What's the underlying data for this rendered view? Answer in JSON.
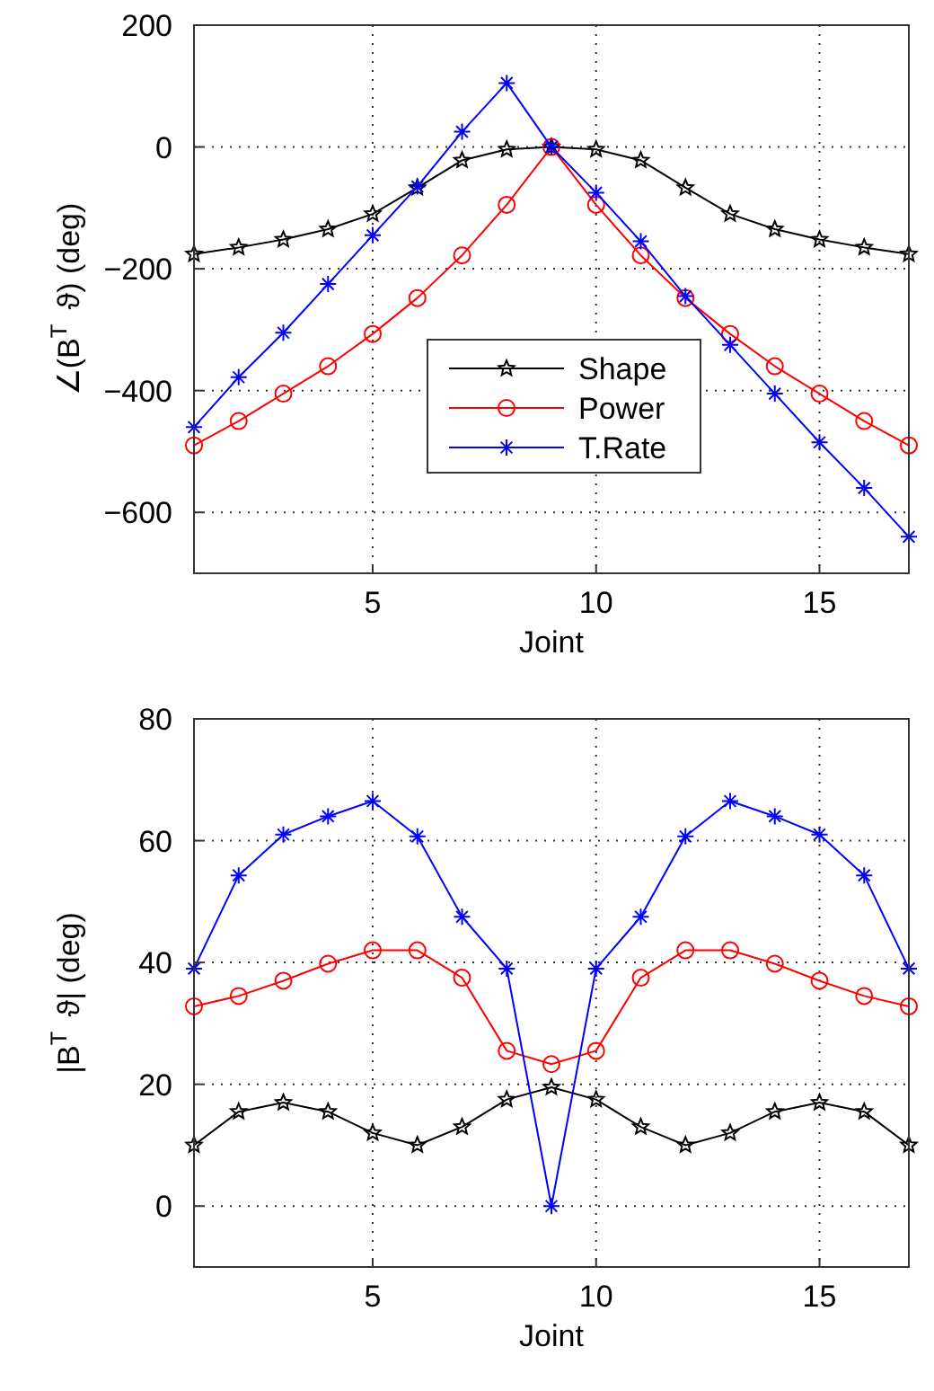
{
  "chart_data": [
    {
      "type": "line",
      "ylabel": "∠(B$^{T}$ ϑ) (deg)",
      "xlabel": "Joint",
      "x": [
        1,
        2,
        3,
        4,
        5,
        6,
        7,
        8,
        9,
        10,
        11,
        12,
        13,
        14,
        15,
        16,
        17
      ],
      "xlim": [
        1,
        17
      ],
      "xticks": [
        5,
        10,
        15
      ],
      "ylim": [
        -700,
        200
      ],
      "yticks": [
        -600,
        -400,
        -200,
        0,
        200
      ],
      "grid": true,
      "legend": "bottom right",
      "series": [
        {
          "name": "Shape",
          "color": "#000000",
          "marker": "star",
          "values": [
            -176,
            -165,
            -152,
            -135,
            -110,
            -67,
            -22,
            -4,
            0,
            -4,
            -22,
            -67,
            -110,
            -135,
            -152,
            -165,
            -176
          ]
        },
        {
          "name": "Power",
          "color": "#ff0000",
          "marker": "circle",
          "values": [
            -490,
            -450,
            -405,
            -360,
            -307,
            -248,
            -178,
            -95,
            0,
            -95,
            -178,
            -248,
            -307,
            -360,
            -405,
            -450,
            -490
          ]
        },
        {
          "name": "T.Rate",
          "color": "#0000ff",
          "marker": "cross",
          "values": [
            -460,
            -378,
            -305,
            -225,
            -145,
            -65,
            25,
            105,
            0,
            -75,
            -155,
            -245,
            -325,
            -405,
            -485,
            -560,
            -640
          ]
        }
      ]
    },
    {
      "type": "line",
      "ylabel": "|B$^{T}$ ϑ| (deg)",
      "xlabel": "Joint",
      "x": [
        1,
        2,
        3,
        4,
        5,
        6,
        7,
        8,
        9,
        10,
        11,
        12,
        13,
        14,
        15,
        16,
        17
      ],
      "xlim": [
        1,
        17
      ],
      "xticks": [
        5,
        10,
        15
      ],
      "ylim": [
        -10,
        80
      ],
      "yticks": [
        0,
        20,
        40,
        60,
        80
      ],
      "grid": true,
      "series": [
        {
          "color": "#000000",
          "marker": "star",
          "values": [
            10,
            15.5,
            17,
            15.5,
            12,
            10,
            13,
            17.5,
            19.5,
            17.5,
            13,
            10,
            12,
            15.5,
            17,
            15.5,
            10
          ]
        },
        {
          "color": "#ff0000",
          "marker": "circle",
          "values": [
            32.8,
            34.5,
            37,
            39.8,
            42,
            42,
            37.5,
            25.5,
            23.3,
            25.5,
            37.5,
            42,
            42,
            39.8,
            37,
            34.5,
            32.8
          ]
        },
        {
          "color": "#0000ff",
          "marker": "cross",
          "values": [
            39,
            54.3,
            61,
            64,
            66.5,
            60.7,
            47.5,
            39,
            0,
            39,
            47.5,
            60.7,
            66.5,
            64,
            61,
            54.3,
            39
          ]
        }
      ]
    }
  ]
}
